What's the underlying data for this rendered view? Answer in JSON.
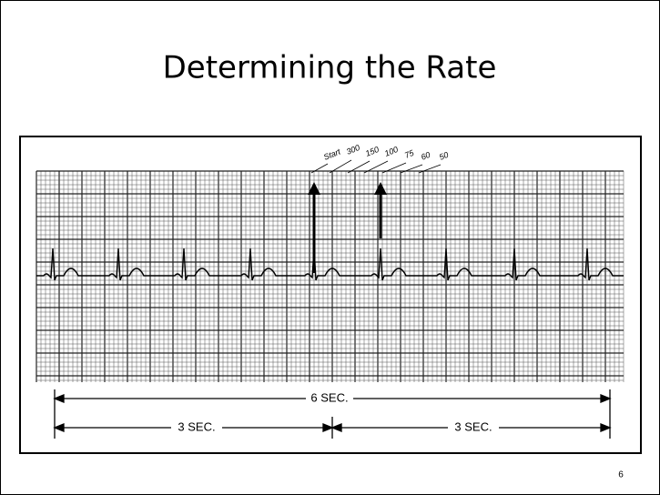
{
  "slide": {
    "title": "Determining the Rate",
    "page_number": "6",
    "figure": {
      "rate_labels": [
        "Start",
        "300",
        "150",
        "100",
        "75",
        "60",
        "50"
      ],
      "total_duration": "6 SEC.",
      "half_durations": [
        "3 SEC.",
        "3 SEC."
      ]
    }
  }
}
